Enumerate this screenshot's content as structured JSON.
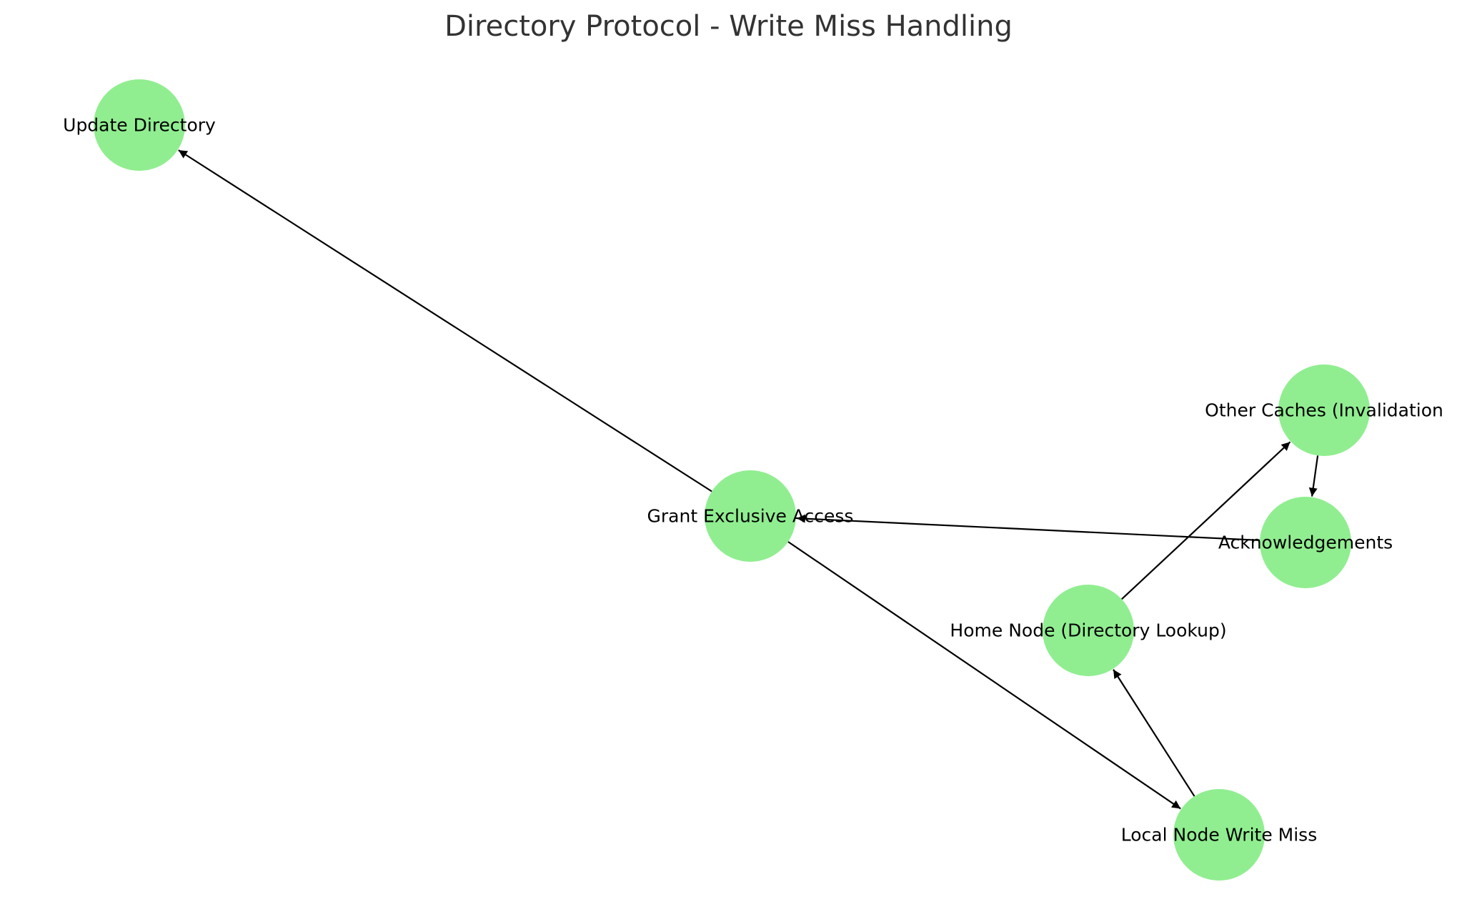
{
  "title": "Directory Protocol - Write Miss Handling",
  "colors": {
    "node_fill": "#90ee90",
    "edge": "#000000",
    "title": "#333333",
    "background": "#ffffff"
  },
  "nodes": [
    {
      "id": "update",
      "label": "Update Directory"
    },
    {
      "id": "others",
      "label": "Other Caches (Invalidation"
    },
    {
      "id": "grant",
      "label": "Grant Exclusive Access"
    },
    {
      "id": "acks",
      "label": "Acknowledgements"
    },
    {
      "id": "home",
      "label": "Home Node (Directory Lookup)"
    },
    {
      "id": "local",
      "label": "Local Node Write Miss"
    }
  ],
  "edges": [
    {
      "from": "local",
      "to": "home"
    },
    {
      "from": "home",
      "to": "others"
    },
    {
      "from": "others",
      "to": "acks"
    },
    {
      "from": "acks",
      "to": "grant"
    },
    {
      "from": "grant",
      "to": "local"
    },
    {
      "from": "grant",
      "to": "update"
    }
  ]
}
